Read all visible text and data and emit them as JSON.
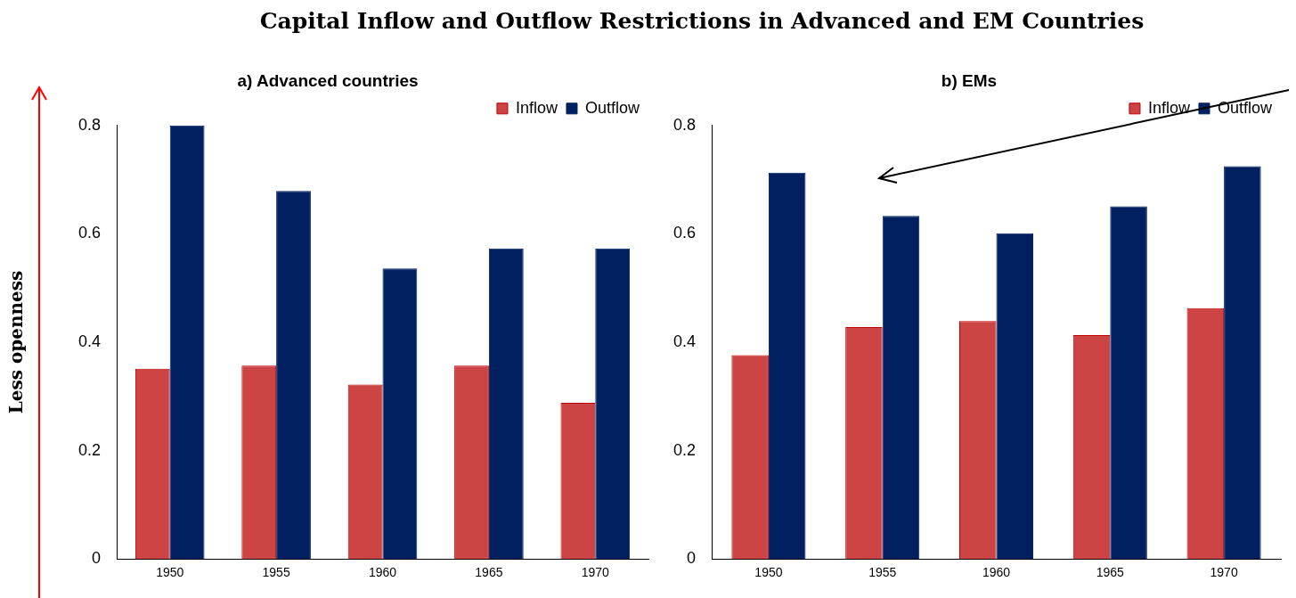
{
  "chart_data": [
    {
      "type": "bar",
      "title": "Capital Inflow and Outflow Restrictions in Advanced and EM Countries",
      "subtitle": "a) Advanced countries",
      "ylabel": "Less openness",
      "categories": [
        "1950",
        "1955",
        "1960",
        "1965",
        "1970"
      ],
      "series": [
        {
          "name": "Inflow",
          "color": "#cc4444",
          "values": [
            0.351,
            0.357,
            0.322,
            0.357,
            0.288
          ]
        },
        {
          "name": "Outflow",
          "color": "#002060",
          "values": [
            0.8,
            0.679,
            0.536,
            0.573,
            0.573
          ]
        }
      ],
      "ylim": [
        0,
        0.8
      ],
      "yticks": [
        0,
        0.2,
        0.4,
        0.6,
        0.8
      ],
      "grid": false,
      "legend": "top right"
    },
    {
      "type": "bar",
      "subtitle": "b) EMs",
      "categories": [
        "1950",
        "1955",
        "1960",
        "1965",
        "1970"
      ],
      "series": [
        {
          "name": "Inflow",
          "color": "#cc4444",
          "values": [
            0.376,
            0.428,
            0.439,
            0.413,
            0.463
          ]
        },
        {
          "name": "Outflow",
          "color": "#002060",
          "values": [
            0.713,
            0.633,
            0.601,
            0.651,
            0.725
          ]
        }
      ],
      "ylim": [
        0,
        0.8
      ],
      "yticks": [
        0,
        0.2,
        0.4,
        0.6,
        0.8
      ],
      "grid": false,
      "legend": "top right"
    }
  ]
}
